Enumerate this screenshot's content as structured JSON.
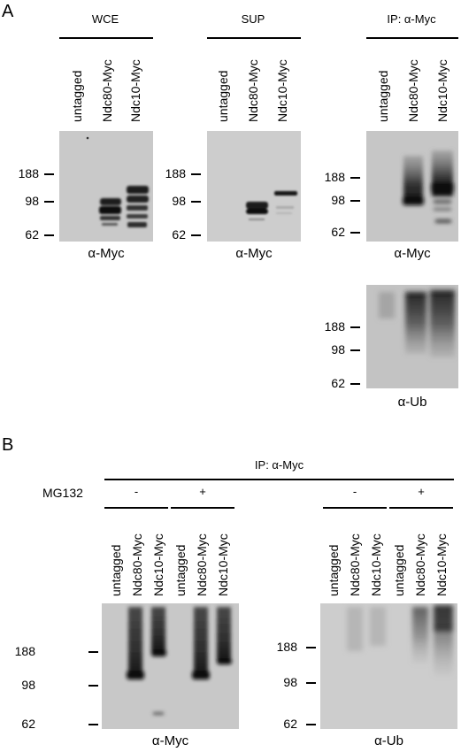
{
  "panels": {
    "a": "A",
    "b": "B"
  },
  "lanes": {
    "untagged": "untagged",
    "ndc80": "Ndc80-Myc",
    "ndc10": "Ndc10-Myc"
  },
  "markers": {
    "m188": "188",
    "m98": "98",
    "m62": "62"
  },
  "panel_a": {
    "wce": "WCE",
    "sup": "SUP",
    "ip": "IP: α-Myc",
    "ab_myc": "α-Myc",
    "ab_ub": "α-Ub"
  },
  "panel_b": {
    "ip": "IP: α-Myc",
    "mg132": "MG132",
    "minus": "-",
    "plus": "+",
    "ab_myc": "α-Myc",
    "ab_ub": "α-Ub"
  }
}
